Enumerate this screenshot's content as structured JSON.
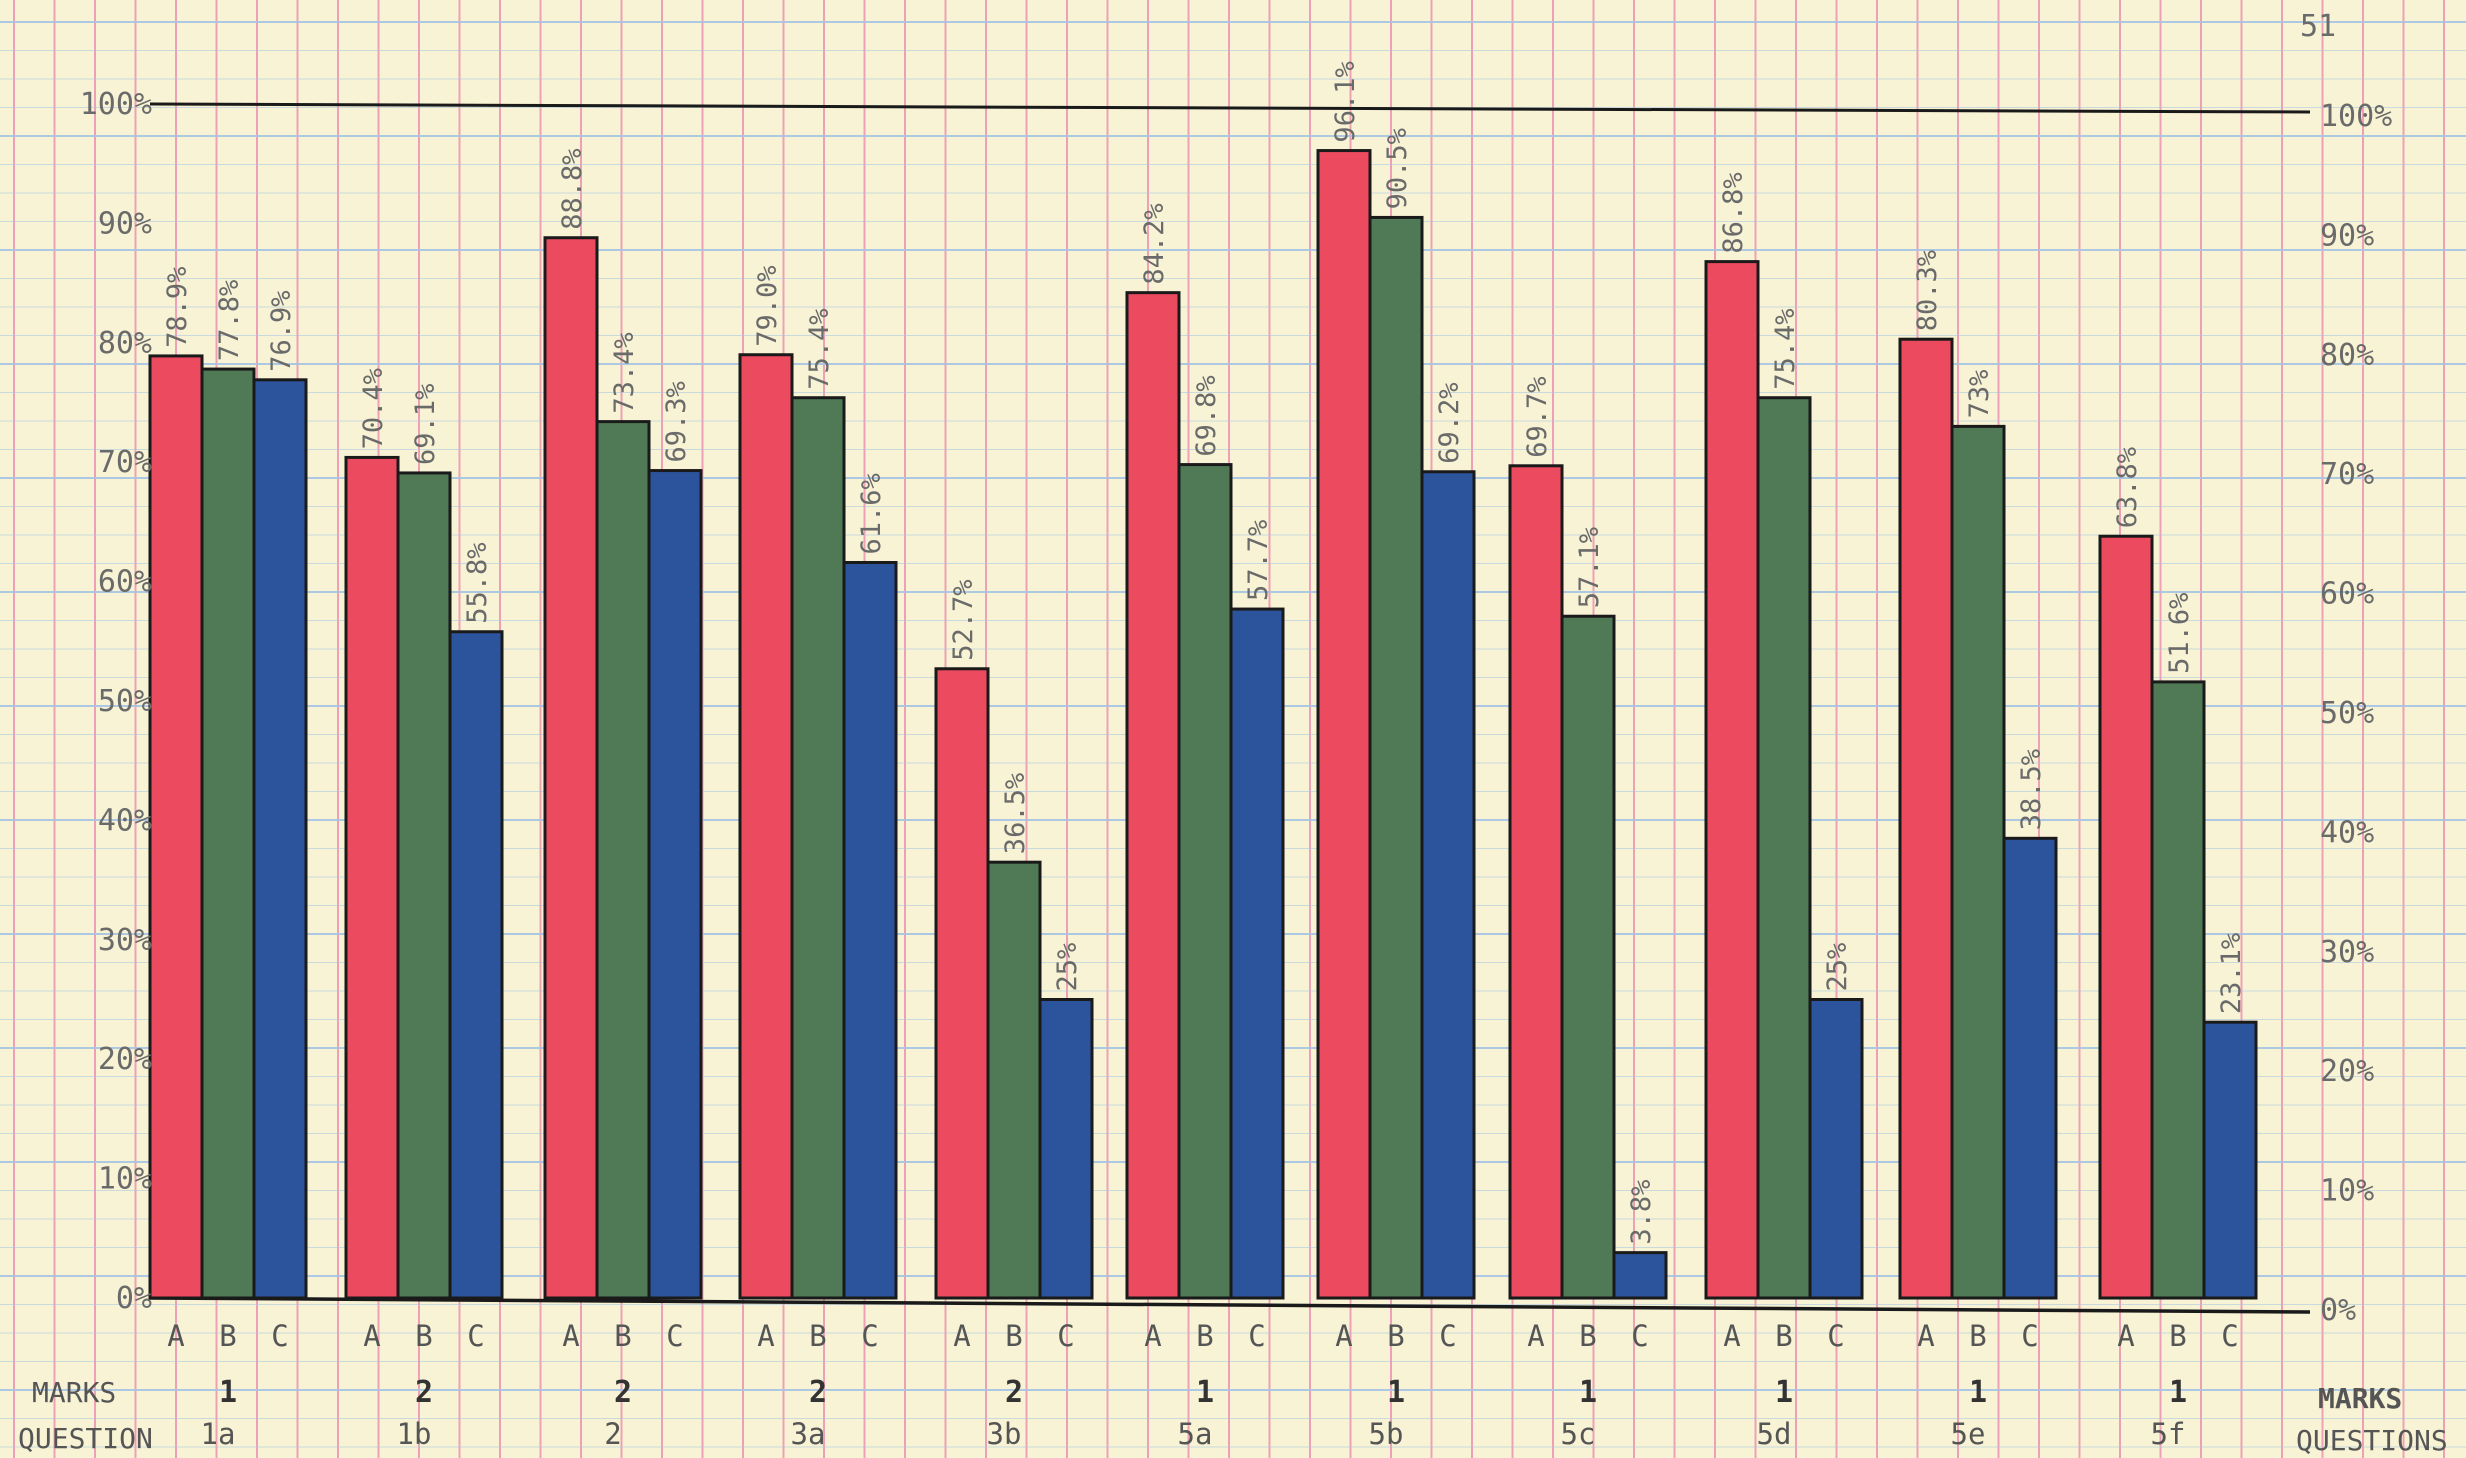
{
  "page_number": "51",
  "labels": {
    "marks_left": "MARKS",
    "question_left": "QUESTION",
    "marks_right": "MARKS",
    "questions_right": "QUESTIONS"
  },
  "colors": {
    "A": "#ec4a5e",
    "B": "#4f7a55",
    "C": "#2c549c",
    "paper": "#f7f3d4",
    "grid_blue": "#a6c4e4",
    "grid_pink": "#f0a0b6"
  },
  "chart_data": {
    "type": "bar",
    "categories": [
      "1a",
      "1b",
      "2",
      "3a",
      "3b",
      "5a",
      "5b",
      "5c",
      "5d",
      "5e",
      "5f"
    ],
    "marks": [
      "1",
      "2",
      "2",
      "2",
      "2",
      "1",
      "1",
      "1",
      "1",
      "1",
      "1"
    ],
    "series_letters": [
      "A",
      "B",
      "C"
    ],
    "series": [
      {
        "name": "A",
        "values": [
          78.9,
          70.4,
          88.8,
          79.0,
          52.7,
          84.2,
          96.1,
          69.7,
          86.8,
          80.3,
          63.8
        ],
        "labels": [
          "78.9%",
          "70.4%",
          "88.8%",
          "79.0%",
          "52.7%",
          "84.2%",
          "96.1%",
          "69.7%",
          "86.8%",
          "80.3%",
          "63.8%"
        ]
      },
      {
        "name": "B",
        "values": [
          77.8,
          69.1,
          73.4,
          75.4,
          36.5,
          69.8,
          90.5,
          57.1,
          75.4,
          73,
          51.6
        ],
        "labels": [
          "77.8%",
          "69.1%",
          "73.4%",
          "75.4%",
          "36.5%",
          "69.8%",
          "90.5%",
          "57.1%",
          "75.4%",
          "73%",
          "51.6%"
        ]
      },
      {
        "name": "C",
        "values": [
          76.9,
          55.8,
          69.3,
          61.6,
          25,
          57.7,
          69.2,
          3.8,
          25,
          38.5,
          23.1
        ],
        "labels": [
          "76.9%",
          "55.8%",
          "69.3%",
          "61.6%",
          "25%",
          "57.7%",
          "69.2%",
          "3.8%",
          "25%",
          "38.5%",
          "23.1%"
        ]
      }
    ],
    "y_ticks": [
      "0%",
      "10%",
      "20%",
      "30%",
      "40%",
      "50%",
      "60%",
      "70%",
      "80%",
      "90%",
      "100%"
    ],
    "ylim": [
      0,
      100
    ],
    "grid": true
  }
}
